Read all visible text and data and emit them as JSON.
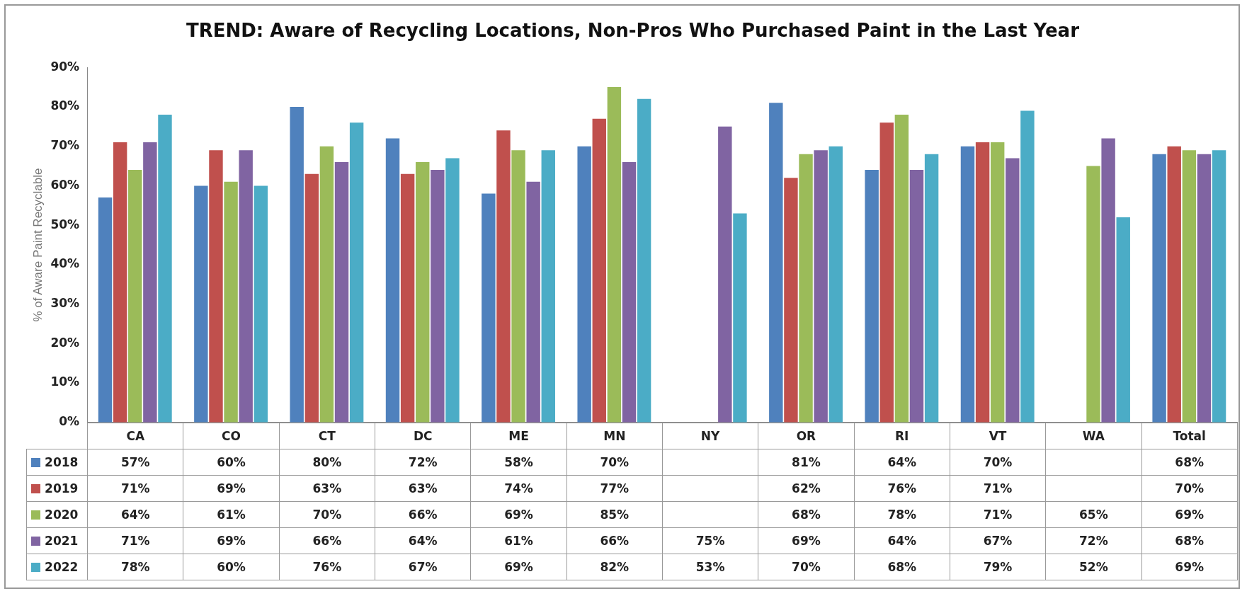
{
  "chart_data": {
    "type": "bar",
    "title": "TREND: Aware of Recycling Locations, Non-Pros Who Purchased Paint in the Last Year",
    "ylabel": "% of Aware Paint Recyclable",
    "categories": [
      "CA",
      "CO",
      "CT",
      "DC",
      "ME",
      "MN",
      "NY",
      "OR",
      "RI",
      "VT",
      "WA",
      "Total"
    ],
    "series": [
      {
        "name": "2018",
        "color": "#4f81bd",
        "values": [
          57,
          60,
          80,
          72,
          58,
          70,
          null,
          81,
          64,
          70,
          null,
          68
        ],
        "value_labels": [
          "57%",
          "60%",
          "80%",
          "72%",
          "58%",
          "70%",
          null,
          "81%",
          "64%",
          "70%",
          null,
          "68%"
        ]
      },
      {
        "name": "2019",
        "color": "#c0504d",
        "values": [
          71,
          69,
          63,
          63,
          74,
          77,
          null,
          62,
          76,
          71,
          null,
          70
        ],
        "value_labels": [
          "71%",
          "69%",
          "63%",
          "63%",
          "74%",
          "77%",
          null,
          "62%",
          "76%",
          "71%",
          null,
          "70%"
        ]
      },
      {
        "name": "2020",
        "color": "#9bbb59",
        "values": [
          64,
          61,
          70,
          66,
          69,
          85,
          null,
          68,
          78,
          71,
          65,
          69
        ],
        "value_labels": [
          "64%",
          "61%",
          "70%",
          "66%",
          "69%",
          "85%",
          null,
          "68%",
          "78%",
          "71%",
          "65%",
          "69%"
        ]
      },
      {
        "name": "2021",
        "color": "#8064a2",
        "values": [
          71,
          69,
          66,
          64,
          61,
          66,
          75,
          69,
          64,
          67,
          72,
          68
        ],
        "value_labels": [
          "71%",
          "69%",
          "66%",
          "64%",
          "61%",
          "66%",
          "75%",
          "69%",
          "64%",
          "67%",
          "72%",
          "68%"
        ]
      },
      {
        "name": "2022",
        "color": "#4bacc6",
        "values": [
          78,
          60,
          76,
          67,
          69,
          82,
          53,
          70,
          68,
          79,
          52,
          69
        ],
        "value_labels": [
          "78%",
          "60%",
          "76%",
          "67%",
          "69%",
          "82%",
          "53%",
          "70%",
          "68%",
          "79%",
          "52%",
          "69%"
        ]
      }
    ],
    "ylim": [
      0,
      90
    ],
    "yticks": [
      {
        "value": 0,
        "label": "0%"
      },
      {
        "value": 10,
        "label": "10%"
      },
      {
        "value": 20,
        "label": "20%"
      },
      {
        "value": 30,
        "label": "30%"
      },
      {
        "value": 40,
        "label": "40%"
      },
      {
        "value": 50,
        "label": "50%"
      },
      {
        "value": 60,
        "label": "60%"
      },
      {
        "value": 70,
        "label": "70%"
      },
      {
        "value": 80,
        "label": "80%"
      },
      {
        "value": 90,
        "label": "90%"
      }
    ],
    "grid": false,
    "legend": "bottom left"
  }
}
